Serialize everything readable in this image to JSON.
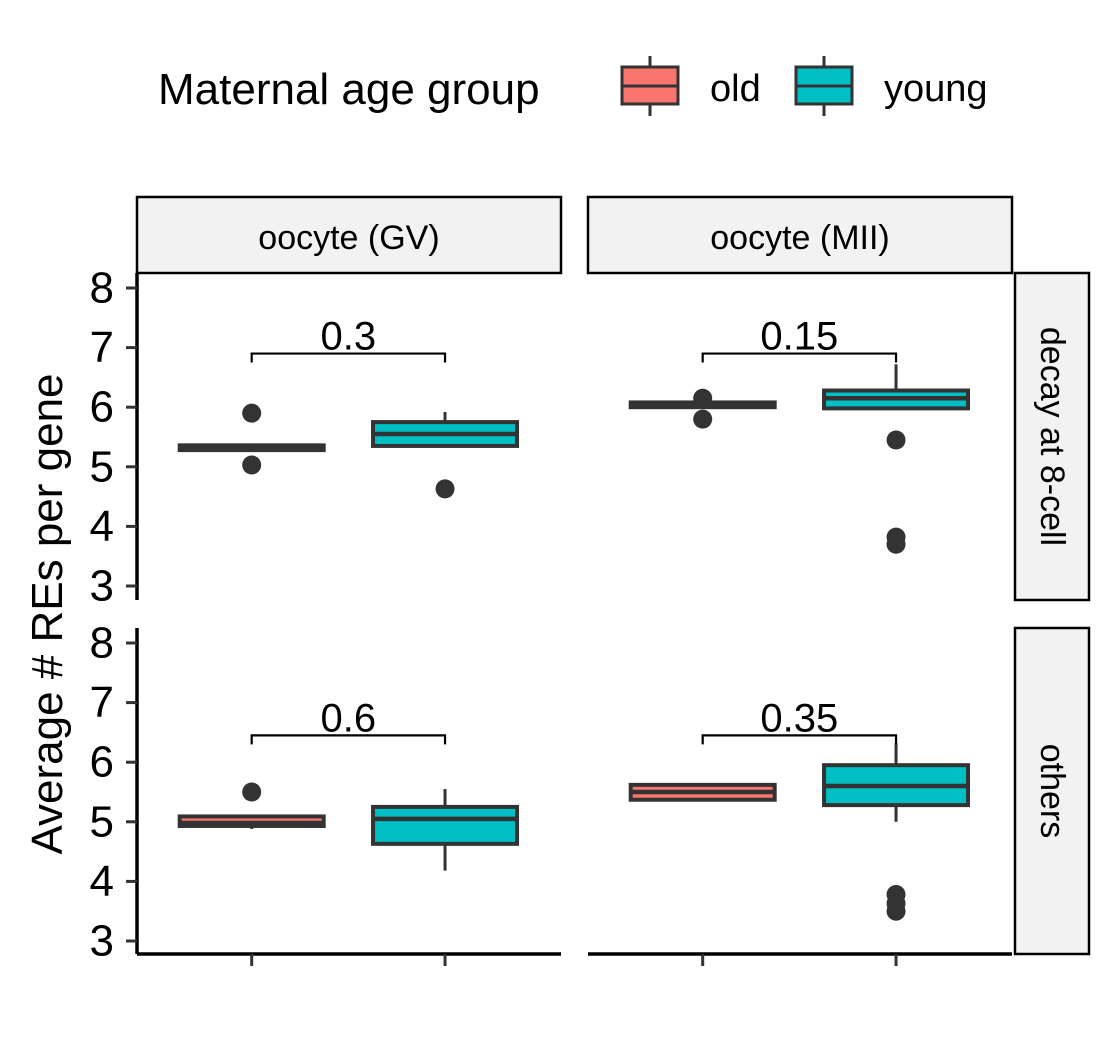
{
  "chart_data": {
    "type": "box",
    "ylabel": "Average # REs per gene",
    "ylim": [
      2.8,
      8.2
    ],
    "y_ticks": [
      3,
      4,
      5,
      6,
      7,
      8
    ],
    "legend": {
      "title": "Maternal age group",
      "position": "top",
      "entries": [
        {
          "name": "old",
          "color": "#F8766D"
        },
        {
          "name": "young",
          "color": "#00BFC4"
        }
      ]
    },
    "col_facets": [
      "oocyte (GV)",
      "oocyte (MII)"
    ],
    "row_facets": [
      "decay at 8-cell",
      "others"
    ],
    "panels": [
      {
        "col": 0,
        "row": 0,
        "p_label": "0.3",
        "bracket_y": 6.9,
        "boxes": [
          {
            "group": "old",
            "q1": 5.28,
            "median": 5.32,
            "q3": 5.36,
            "whisker_low": 5.28,
            "whisker_high": 5.36,
            "outliers": [
              5.9,
              5.03
            ]
          },
          {
            "group": "young",
            "q1": 5.35,
            "median": 5.55,
            "q3": 5.75,
            "whisker_low": 5.35,
            "whisker_high": 5.92,
            "outliers": [
              4.63
            ]
          }
        ]
      },
      {
        "col": 1,
        "row": 0,
        "p_label": "0.15",
        "bracket_y": 6.9,
        "boxes": [
          {
            "group": "old",
            "q1": 6.0,
            "median": 6.04,
            "q3": 6.08,
            "whisker_low": 6.0,
            "whisker_high": 6.08,
            "outliers": [
              6.15,
              5.8
            ]
          },
          {
            "group": "young",
            "q1": 5.98,
            "median": 6.15,
            "q3": 6.28,
            "whisker_low": 5.98,
            "whisker_high": 6.72,
            "outliers": [
              5.45,
              3.82,
              3.7
            ]
          }
        ]
      },
      {
        "col": 0,
        "row": 1,
        "p_label": "0.6",
        "bracket_y": 6.45,
        "boxes": [
          {
            "group": "old",
            "q1": 4.93,
            "median": 4.98,
            "q3": 5.09,
            "whisker_low": 4.88,
            "whisker_high": 5.09,
            "outliers": [
              5.5
            ]
          },
          {
            "group": "young",
            "q1": 4.63,
            "median": 5.05,
            "q3": 5.25,
            "whisker_low": 4.18,
            "whisker_high": 5.55,
            "outliers": []
          }
        ]
      },
      {
        "col": 1,
        "row": 1,
        "p_label": "0.35",
        "bracket_y": 6.45,
        "boxes": [
          {
            "group": "old",
            "q1": 5.37,
            "median": 5.5,
            "q3": 5.62,
            "whisker_low": 5.37,
            "whisker_high": 5.62,
            "outliers": []
          },
          {
            "group": "young",
            "q1": 5.28,
            "median": 5.6,
            "q3": 5.95,
            "whisker_low": 5.0,
            "whisker_high": 6.32,
            "outliers": [
              3.78,
              3.63,
              3.5
            ]
          }
        ]
      }
    ]
  }
}
